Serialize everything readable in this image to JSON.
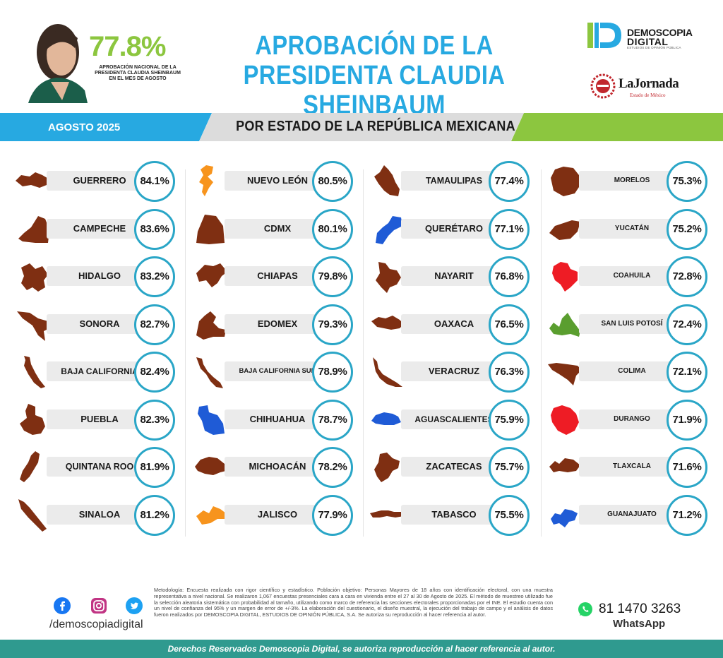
{
  "header": {
    "national_pct": "77.8%",
    "national_caption": "APROBACIÓN NACIONAL DE LA PRESIDENTA CLAUDIA SHEINBAUM EN EL MES DE AGOSTO",
    "title_line1": "APROBACIÓN DE LA",
    "title_line2": "PRESIDENTA CLAUDIA SHEINBAUM",
    "logo1_line1": "DEMOSCOPIA",
    "logo1_line2": "DIGITAL",
    "logo1_tagline": "ESTUDIOS DE OPINIÓN PÚBLICA",
    "logo2_name": "LaJornada",
    "logo2_sub": "Estado de México"
  },
  "band": {
    "month": "AGOSTO 2025",
    "subtitle": "POR ESTADO DE LA REPÚBLICA MEXICANA"
  },
  "colors": {
    "blue": "#27a9e1",
    "green": "#8cc63f",
    "ring": "#2aa6c7",
    "map_brown": "#7f2f12",
    "map_orange": "#f7941d",
    "map_blue": "#1f5bd6",
    "map_red": "#ee1c25",
    "map_green": "#5a9e2f"
  },
  "chart_data": {
    "type": "table",
    "unit": "%",
    "columns": [
      [
        {
          "state": "GUERRERO",
          "value": 84.1,
          "label": "84.1%",
          "color": "brown"
        },
        {
          "state": "CAMPECHE",
          "value": 83.6,
          "label": "83.6%",
          "color": "brown"
        },
        {
          "state": "HIDALGO",
          "value": 83.2,
          "label": "83.2%",
          "color": "brown"
        },
        {
          "state": "SONORA",
          "value": 82.7,
          "label": "82.7%",
          "color": "brown"
        },
        {
          "state": "BAJA CALIFORNIA",
          "value": 82.4,
          "label": "82.4%",
          "color": "brown"
        },
        {
          "state": "PUEBLA",
          "value": 82.3,
          "label": "82.3%",
          "color": "brown"
        },
        {
          "state": "QUINTANA ROO",
          "value": 81.9,
          "label": "81.9%",
          "color": "brown"
        },
        {
          "state": "SINALOA",
          "value": 81.2,
          "label": "81.2%",
          "color": "brown"
        }
      ],
      [
        {
          "state": "NUEVO LEÓN",
          "value": 80.5,
          "label": "80.5%",
          "color": "orange"
        },
        {
          "state": "CDMX",
          "value": 80.1,
          "label": "80.1%",
          "color": "brown"
        },
        {
          "state": "CHIAPAS",
          "value": 79.8,
          "label": "79.8%",
          "color": "brown"
        },
        {
          "state": "EDOMEX",
          "value": 79.3,
          "label": "79.3%",
          "color": "brown"
        },
        {
          "state": "BAJA CALIFORNIA SUR",
          "value": 78.9,
          "label": "78.9%",
          "color": "brown"
        },
        {
          "state": "CHIHUAHUA",
          "value": 78.7,
          "label": "78.7%",
          "color": "blue"
        },
        {
          "state": "MICHOACÁN",
          "value": 78.2,
          "label": "78.2%",
          "color": "brown"
        },
        {
          "state": "JALISCO",
          "value": 77.9,
          "label": "77.9%",
          "color": "orange"
        }
      ],
      [
        {
          "state": "TAMAULIPAS",
          "value": 77.4,
          "label": "77.4%",
          "color": "brown"
        },
        {
          "state": "QUERÉTARO",
          "value": 77.1,
          "label": "77.1%",
          "color": "blue"
        },
        {
          "state": "NAYARIT",
          "value": 76.8,
          "label": "76.8%",
          "color": "brown"
        },
        {
          "state": "OAXACA",
          "value": 76.5,
          "label": "76.5%",
          "color": "brown"
        },
        {
          "state": "VERACRUZ",
          "value": 76.3,
          "label": "76.3%",
          "color": "brown"
        },
        {
          "state": "AGUASCALIENTES",
          "value": 75.9,
          "label": "75.9%",
          "color": "blue"
        },
        {
          "state": "ZACATECAS",
          "value": 75.7,
          "label": "75.7%",
          "color": "brown"
        },
        {
          "state": "TABASCO",
          "value": 75.5,
          "label": "75.5%",
          "color": "brown"
        }
      ],
      [
        {
          "state": "MORELOS",
          "value": 75.3,
          "label": "75.3%",
          "color": "brown"
        },
        {
          "state": "YUCATÁN",
          "value": 75.2,
          "label": "75.2%",
          "color": "brown"
        },
        {
          "state": "COAHUILA",
          "value": 72.8,
          "label": "72.8%",
          "color": "red"
        },
        {
          "state": "SAN LUIS POTOSÍ",
          "value": 72.4,
          "label": "72.4%",
          "color": "green"
        },
        {
          "state": "COLIMA",
          "value": 72.1,
          "label": "72.1%",
          "color": "brown"
        },
        {
          "state": "DURANGO",
          "value": 71.9,
          "label": "71.9%",
          "color": "red"
        },
        {
          "state": "TLAXCALA",
          "value": 71.6,
          "label": "71.6%",
          "color": "brown"
        },
        {
          "state": "GUANAJUATO",
          "value": 71.2,
          "label": "71.2%",
          "color": "blue"
        }
      ]
    ]
  },
  "footer": {
    "methodology": "Metodología: Encuesta realizada con rigor científico y estadístico. Población objetivo: Personas Mayores de 18 años con identificación electoral, con una muestra representativa a nivel nacional. Se realizaron 1,067 encuestas presenciales cara a cara en vivienda entre el 27 al 30 de Agosto de 2025. El método de muestreo utilizado fue la selección aleatoria sistemática con probabilidad al tamaño, utilizando como marco de referencia las secciones electorales proporcionadas por el INE. El estudio cuenta con un nivel de confianza del 95% y un margen de error de +/-3%. La elaboración del cuestionario, el diseño muestral, la ejecución del trabajo de campo y el análisis de datos fueron realizados por DEMOSCOPIA DIGITAL, ESTUDIOS DE OPINIÓN PÚBLICA, S.A. Se autoriza su reproducción al hacer referencia al autor.",
    "social_handle": "/demoscopiadigital",
    "phone": "81 1470 3263",
    "phone_label": "WhatsApp",
    "rights": "Derechos Reservados Demoscopia Digital, se autoriza reproducción al hacer referencia al autor."
  }
}
